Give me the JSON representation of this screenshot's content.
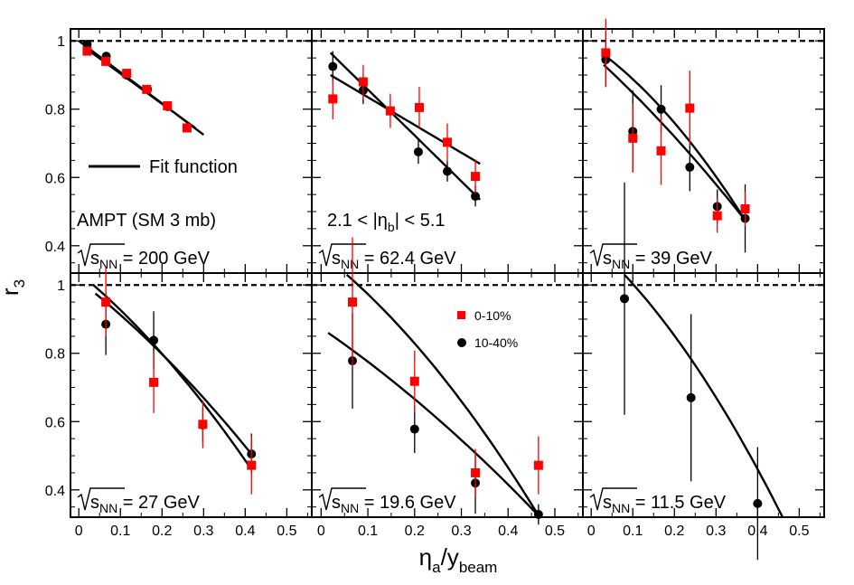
{
  "chart_data": {
    "type": "scatter",
    "xlabel_main": "η",
    "xlabel_sub1": "a",
    "xlabel_mid": "/y",
    "xlabel_sub2": "beam",
    "ylabel_main": "r",
    "ylabel_sub": "3",
    "xlim": [
      -0.02,
      0.56
    ],
    "ylim": [
      0.32,
      1.035
    ],
    "x_ticks": [
      "0",
      "0.1",
      "0.2",
      "0.3",
      "0.4",
      "0.5"
    ],
    "y_ticks": [
      "1",
      "0.8",
      "0.6",
      "0.4"
    ],
    "reference_line_y": 1.0,
    "colors": {
      "central": "#ff0000",
      "midcentral": "#000000",
      "fit": "#000000",
      "reference": "#000000"
    },
    "legend_series": [
      {
        "name": "0-10%",
        "marker": "square"
      },
      {
        "name": "10-40%",
        "marker": "circle"
      }
    ],
    "legend_fit": "Fit function",
    "notes": {
      "model": "AMPT (SM 3 mb)",
      "eta_cut": "2.1 < |η",
      "eta_cut_sub": "b",
      "eta_cut_end": "| < 5.1"
    },
    "panels": [
      {
        "energy_label": "s",
        "energy_sub": "NN",
        "energy_value": " = 200 GeV",
        "central": [
          {
            "x": 0.02,
            "y": 0.97,
            "err": 0.01
          },
          {
            "x": 0.065,
            "y": 0.94,
            "err": 0.01
          },
          {
            "x": 0.115,
            "y": 0.905,
            "err": 0.01
          },
          {
            "x": 0.163,
            "y": 0.858,
            "err": 0.01
          },
          {
            "x": 0.213,
            "y": 0.81,
            "err": 0.01
          },
          {
            "x": 0.26,
            "y": 0.745,
            "err": 0.01
          }
        ],
        "midcentral": [
          {
            "x": 0.02,
            "y": 0.99,
            "err": 0.005
          },
          {
            "x": 0.066,
            "y": 0.955,
            "err": 0.005
          },
          {
            "x": 0.115,
            "y": 0.9,
            "err": 0.005
          },
          {
            "x": 0.165,
            "y": 0.858,
            "err": 0.005
          },
          {
            "x": 0.213,
            "y": 0.808,
            "err": 0.005
          }
        ],
        "fits": [
          {
            "x_start": 0.0,
            "x_end": 0.3,
            "y_start": 1.0,
            "y_end": 0.725
          },
          {
            "x_start": 0.02,
            "x_end": 0.28,
            "y_start": 0.975,
            "y_end": 0.745
          }
        ]
      },
      {
        "energy_label": "s",
        "energy_sub": "NN",
        "energy_value": " = 62.4 GeV",
        "central": [
          {
            "x": 0.025,
            "y": 0.83,
            "err": 0.06
          },
          {
            "x": 0.09,
            "y": 0.88,
            "err": 0.05
          },
          {
            "x": 0.148,
            "y": 0.795,
            "err": 0.05
          },
          {
            "x": 0.21,
            "y": 0.805,
            "err": 0.06
          },
          {
            "x": 0.27,
            "y": 0.703,
            "err": 0.055
          },
          {
            "x": 0.33,
            "y": 0.603,
            "err": 0.05
          }
        ],
        "midcentral": [
          {
            "x": 0.025,
            "y": 0.925,
            "err": 0.045
          },
          {
            "x": 0.09,
            "y": 0.855,
            "err": 0.04
          },
          {
            "x": 0.208,
            "y": 0.675,
            "err": 0.035
          },
          {
            "x": 0.27,
            "y": 0.618,
            "err": 0.03
          },
          {
            "x": 0.33,
            "y": 0.545,
            "err": 0.03
          }
        ],
        "fits": [
          {
            "x_start": 0.02,
            "x_end": 0.34,
            "y_start": 0.965,
            "y_end": 0.535
          },
          {
            "x_start": 0.02,
            "x_end": 0.34,
            "y_start": 0.9,
            "y_end": 0.64
          }
        ]
      },
      {
        "energy_label": "s",
        "energy_sub": "NN",
        "energy_value": " = 39 GeV",
        "central": [
          {
            "x": 0.035,
            "y": 0.965,
            "err": 0.1
          },
          {
            "x": 0.1,
            "y": 0.715,
            "err": 0.1
          },
          {
            "x": 0.168,
            "y": 0.678,
            "err": 0.1
          },
          {
            "x": 0.237,
            "y": 0.803,
            "err": 0.11
          },
          {
            "x": 0.303,
            "y": 0.488,
            "err": 0.05
          },
          {
            "x": 0.37,
            "y": 0.508,
            "err": 0.05
          }
        ],
        "midcentral": [
          {
            "x": 0.035,
            "y": 0.945,
            "err": 0.08
          },
          {
            "x": 0.1,
            "y": 0.735,
            "err": 0.12
          },
          {
            "x": 0.168,
            "y": 0.8,
            "err": 0.07
          },
          {
            "x": 0.237,
            "y": 0.63,
            "err": 0.07
          },
          {
            "x": 0.303,
            "y": 0.515,
            "err": 0.05
          },
          {
            "x": 0.37,
            "y": 0.48,
            "err": 0.1
          }
        ],
        "fits": [
          {
            "x_start": 0.03,
            "x_end": 0.37,
            "y_start": 0.96,
            "y_end": 0.475,
            "curve": 0.35
          },
          {
            "x_start": 0.03,
            "x_end": 0.37,
            "y_start": 0.93,
            "y_end": 0.475,
            "curve": 0.15
          }
        ]
      },
      {
        "energy_label": "s",
        "energy_sub": "NN",
        "energy_value": " = 27 GeV",
        "central": [
          {
            "x": 0.065,
            "y": 0.95,
            "err": 0.1
          },
          {
            "x": 0.18,
            "y": 0.715,
            "err": 0.09
          },
          {
            "x": 0.298,
            "y": 0.592,
            "err": 0.07
          },
          {
            "x": 0.415,
            "y": 0.472,
            "err": 0.085
          }
        ],
        "midcentral": [
          {
            "x": 0.065,
            "y": 0.885,
            "err": 0.09
          },
          {
            "x": 0.18,
            "y": 0.838,
            "err": 0.085
          },
          {
            "x": 0.298,
            "y": 0.59,
            "err": 0.05
          },
          {
            "x": 0.415,
            "y": 0.505,
            "err": 0.06
          }
        ],
        "fits": [
          {
            "x_start": 0.035,
            "x_end": 0.415,
            "y_start": 1.0,
            "y_end": 0.46,
            "curve": 0.25
          },
          {
            "x_start": 0.04,
            "x_end": 0.415,
            "y_start": 0.975,
            "y_end": 0.505,
            "curve": 0.2
          }
        ]
      },
      {
        "energy_label": "s",
        "energy_sub": "NN",
        "energy_value": " = 19.6 GeV",
        "central": [
          {
            "x": 0.067,
            "y": 0.95,
            "err": 0.19
          },
          {
            "x": 0.2,
            "y": 0.718,
            "err": 0.09
          },
          {
            "x": 0.33,
            "y": 0.45,
            "err": 0.07
          },
          {
            "x": 0.465,
            "y": 0.472,
            "err": 0.085
          }
        ],
        "midcentral": [
          {
            "x": 0.067,
            "y": 0.778,
            "err": 0.14
          },
          {
            "x": 0.2,
            "y": 0.578,
            "err": 0.07
          },
          {
            "x": 0.33,
            "y": 0.42,
            "err": 0.09
          },
          {
            "x": 0.465,
            "y": 0.328,
            "err": 0.03
          }
        ],
        "fits": [
          {
            "x_start": 0.055,
            "x_end": 0.465,
            "y_start": 1.03,
            "y_end": 0.325,
            "curve": 0.3
          },
          {
            "x_start": 0.015,
            "x_end": 0.465,
            "y_start": 0.86,
            "y_end": 0.325,
            "curve": 0.2
          }
        ]
      },
      {
        "energy_label": "s",
        "energy_sub": "NN",
        "energy_value": " = 11.5 GeV",
        "central": [],
        "midcentral": [
          {
            "x": 0.08,
            "y": 0.96,
            "err": 0.34
          },
          {
            "x": 0.24,
            "y": 0.67,
            "err": 0.245
          },
          {
            "x": 0.4,
            "y": 0.36,
            "err": 0.165
          }
        ],
        "fits": [
          {
            "x_start": 0.08,
            "x_end": 0.46,
            "y_start": 1.03,
            "y_end": 0.32,
            "curve": 0.3
          }
        ]
      }
    ]
  }
}
